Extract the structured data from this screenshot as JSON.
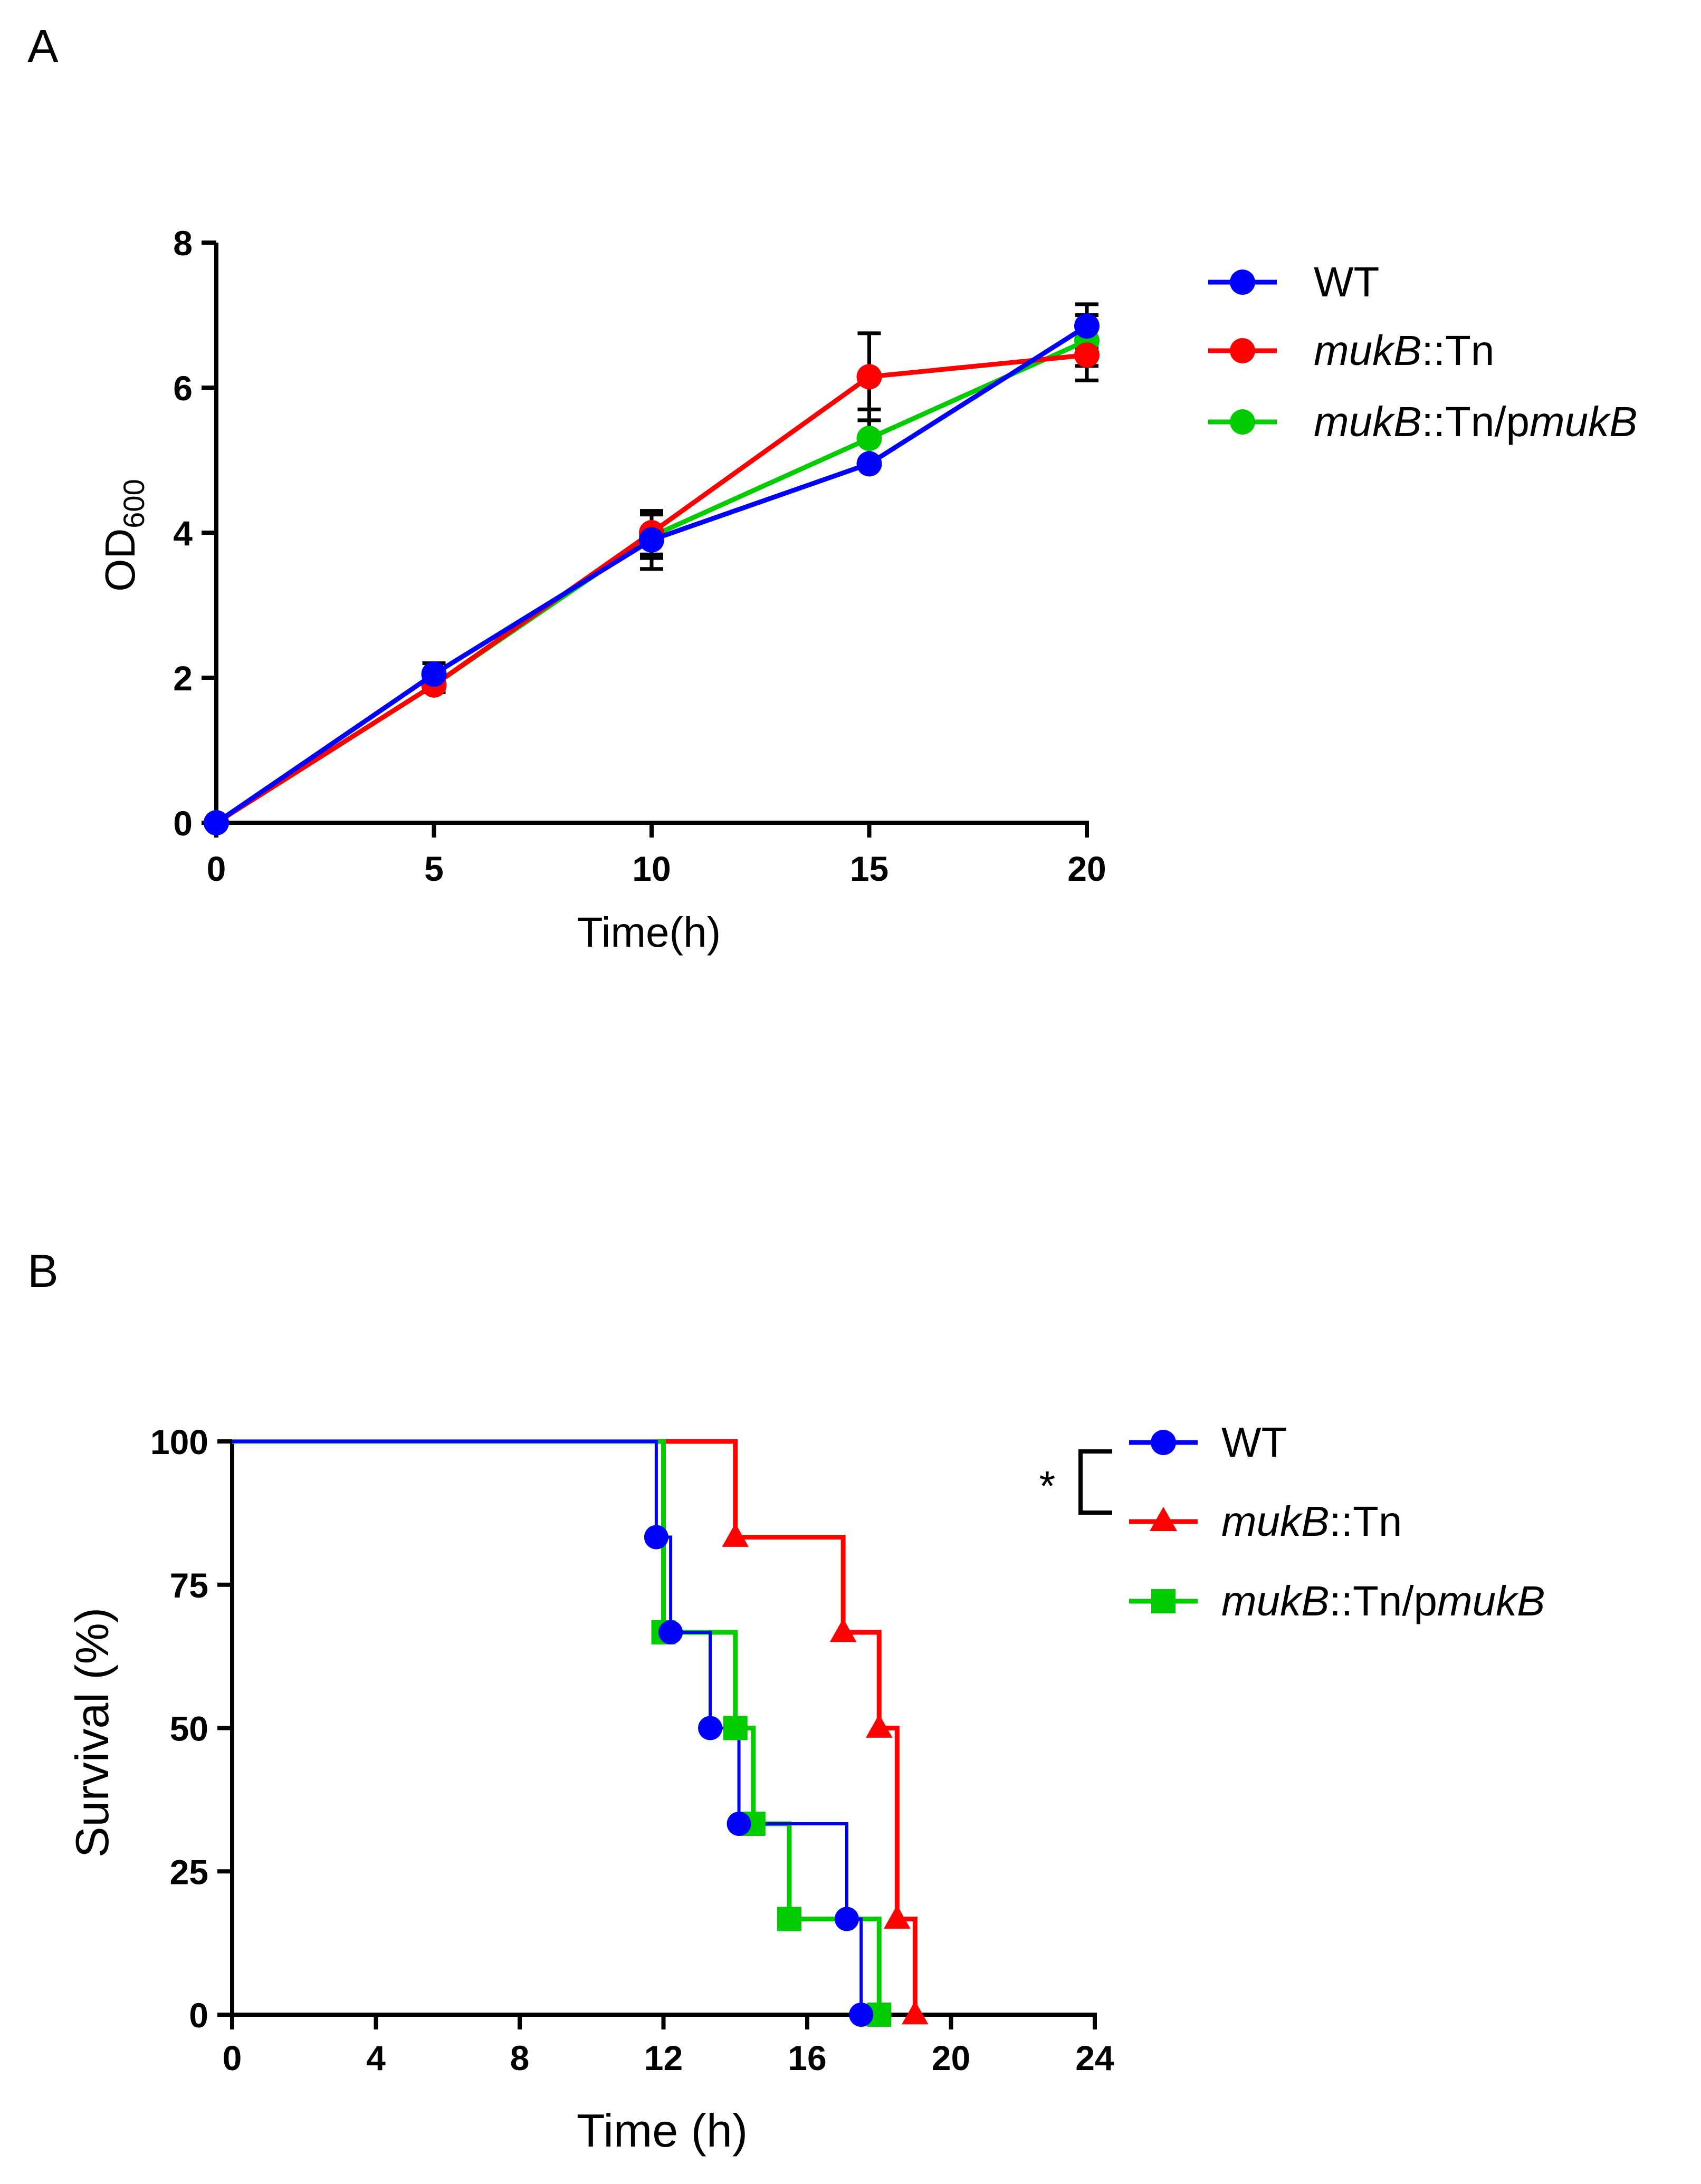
{
  "chart_data": [
    {
      "id": "A",
      "type": "line",
      "panel_label": "A",
      "title": "",
      "xlabel": "Time(h)",
      "ylabel": {
        "base": "OD",
        "subscript": "600"
      },
      "xlim": [
        0,
        20
      ],
      "ylim": [
        0,
        8
      ],
      "xticks": [
        "0",
        "5",
        "10",
        "15",
        "20"
      ],
      "yticks": [
        "0",
        "2",
        "4",
        "6",
        "8"
      ],
      "x": [
        0,
        5,
        10,
        15,
        20
      ],
      "grid": false,
      "legend_position": "right",
      "series": [
        {
          "name": "WT",
          "color": "#0000ff",
          "marker": "circle",
          "values": [
            0,
            2.05,
            3.9,
            4.95,
            6.85
          ],
          "errors": [
            0,
            0.15,
            0.4,
            0,
            0.3
          ]
        },
        {
          "name": "mukB::Tn",
          "color": "#ff0000",
          "marker": "circle",
          "values": [
            0,
            1.9,
            4.0,
            6.15,
            6.45
          ],
          "errors": [
            0,
            0.1,
            0.3,
            0.6,
            0.35
          ]
        },
        {
          "name": "mukB::Tn/pmukB",
          "color": "#00cc00",
          "marker": "circle",
          "values": [
            0,
            1.9,
            3.95,
            5.3,
            6.65
          ],
          "errors": [
            0,
            0.1,
            0.3,
            0.4,
            0.35
          ]
        }
      ],
      "legend": [
        [
          {
            "text": "mukB",
            "italic": true
          },
          {
            "text": "::Tn",
            "italic": false
          }
        ],
        [
          {
            "text": "mukB",
            "italic": true
          },
          {
            "text": "::Tn/p",
            "italic": false
          },
          {
            "text": "mukB",
            "italic": true
          }
        ]
      ]
    },
    {
      "id": "B",
      "type": "line",
      "subtype": "kaplan-meier",
      "panel_label": "B",
      "title": "",
      "xlabel": "Time (h)",
      "ylabel": "Survival (%)",
      "xlim": [
        0,
        24
      ],
      "ylim": [
        0,
        100
      ],
      "xticks": [
        "0",
        "4",
        "8",
        "12",
        "16",
        "20",
        "24"
      ],
      "yticks": [
        "0",
        "25",
        "50",
        "75",
        "100"
      ],
      "grid": false,
      "legend_position": "right",
      "significance": {
        "label": "*",
        "between": [
          "WT",
          "mukB::Tn"
        ]
      },
      "series": [
        {
          "name": "WT",
          "color": "#0000ff",
          "marker": "circle",
          "times": [
            0,
            11.8,
            12.2,
            13.3,
            14.1,
            17.1,
            17.5
          ],
          "survival": [
            100,
            83.3,
            66.7,
            50,
            33.3,
            16.7,
            0
          ]
        },
        {
          "name": "mukB::Tn",
          "color": "#ff0000",
          "marker": "triangle",
          "times": [
            0,
            14,
            17,
            18,
            18.5,
            19
          ],
          "survival": [
            100,
            83.3,
            66.7,
            50,
            16.7,
            0
          ]
        },
        {
          "name": "mukB::Tn/pmukB",
          "color": "#00cc00",
          "marker": "square",
          "times": [
            0,
            12,
            14,
            14.5,
            15.5,
            18
          ],
          "survival": [
            100,
            66.7,
            50,
            33.3,
            16.7,
            0
          ]
        }
      ],
      "legend": [
        [
          {
            "text": "mukB",
            "italic": true
          },
          {
            "text": "::Tn",
            "italic": false
          }
        ],
        [
          {
            "text": "mukB",
            "italic": true
          },
          {
            "text": "::Tn/p",
            "italic": false
          },
          {
            "text": "mukB",
            "italic": true
          }
        ]
      ]
    }
  ]
}
